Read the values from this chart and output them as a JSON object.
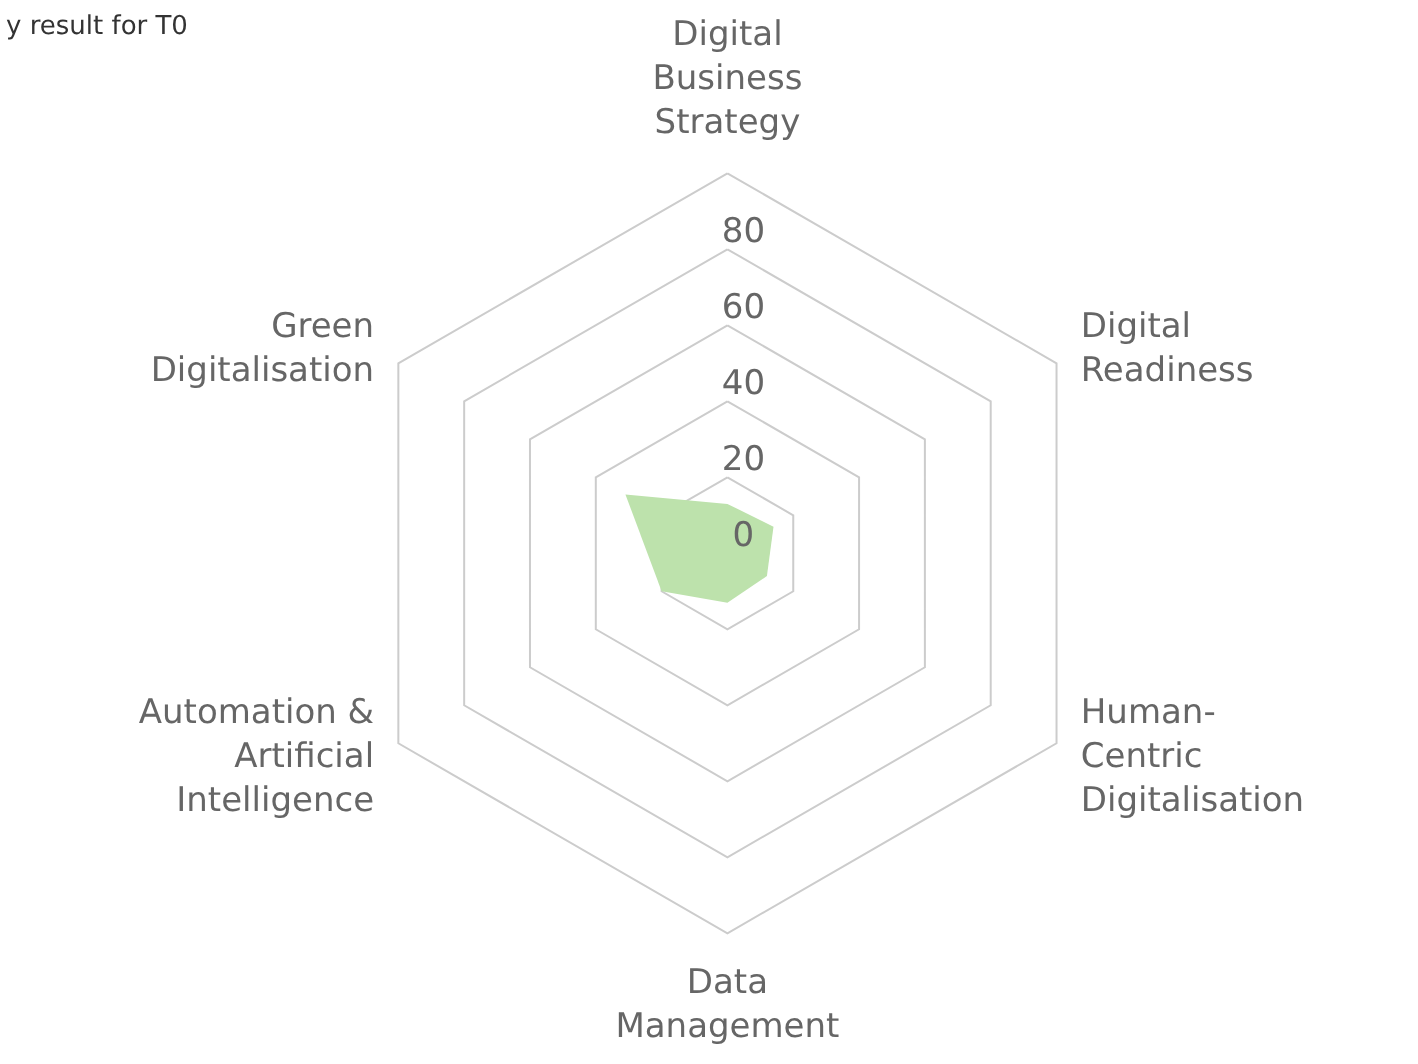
{
  "chart_data": {
    "type": "radar",
    "title": "y result for T0",
    "categories": [
      "Digital Business Strategy",
      "Digital Readiness",
      "Human-Centric Digitalisation",
      "Data Management",
      "Automation & Artificial Intelligence",
      "Green Digitalisation"
    ],
    "series": [
      {
        "color": "#bde2ac",
        "values": [
          13,
          14,
          12,
          13,
          20,
          31
        ]
      }
    ],
    "ylim": [
      0,
      100
    ],
    "yticks": [
      0,
      20,
      40,
      60,
      80
    ],
    "grid": true
  }
}
